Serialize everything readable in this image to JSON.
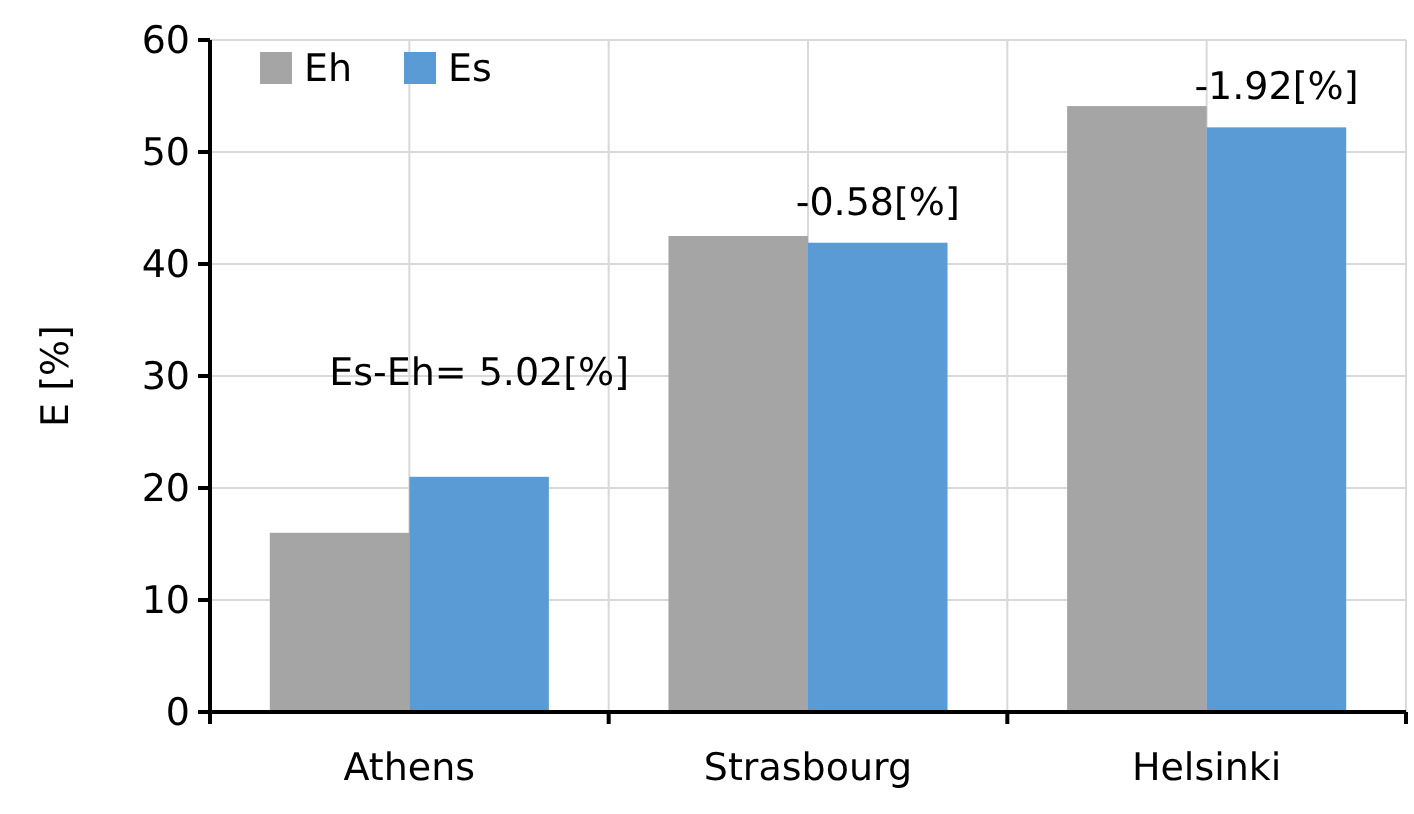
{
  "chart_data": {
    "type": "bar",
    "ylabel": "E [%]",
    "categories": [
      "Athens",
      "Strasbourg",
      "Helsinki"
    ],
    "series": [
      {
        "name": "Eh",
        "color": "#a5a5a5",
        "values": [
          16.0,
          42.5,
          54.1
        ]
      },
      {
        "name": "Es",
        "color": "#5b9bd5",
        "values": [
          21.0,
          41.9,
          52.2
        ]
      }
    ],
    "ylim": [
      0,
      60
    ],
    "yticks": [
      0,
      10,
      20,
      30,
      40,
      50,
      60
    ],
    "grid": true,
    "legend": "top left",
    "annotations": [
      {
        "text": "Es-Eh= 5.02[%]",
        "x": "Athens",
        "y": 21.0
      },
      {
        "text": "-0.58[%]",
        "x": "Strasbourg",
        "y": 41.9
      },
      {
        "text": "-1.92[%]",
        "x": "Helsinki",
        "y": 52.2
      }
    ]
  }
}
